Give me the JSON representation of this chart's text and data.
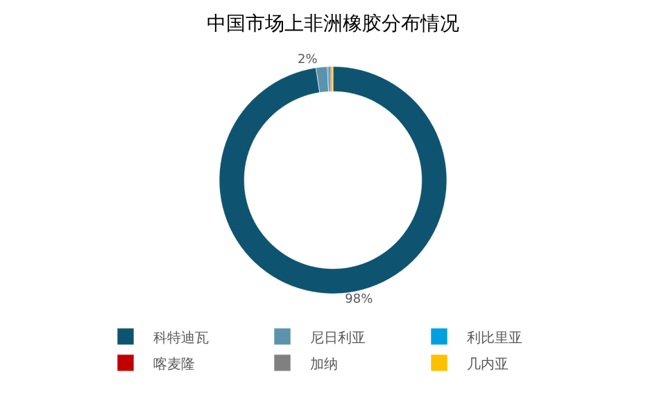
{
  "chart_data": {
    "type": "donut",
    "title": "中国市场上非洲橡胶分布情况",
    "categories": [
      "科特迪瓦",
      "尼日利亚",
      "利比里亚",
      "喀麦隆",
      "加纳",
      "几内亚"
    ],
    "values": [
      97.6,
      1.6,
      0.2,
      0.2,
      0.2,
      0.2
    ],
    "colors": [
      "#0e5470",
      "#5b93ad",
      "#00a0e0",
      "#c00000",
      "#808080",
      "#ffc000"
    ],
    "value_labels": [
      "98%",
      "2%",
      null,
      null,
      null,
      null
    ],
    "legend": "bottom"
  }
}
